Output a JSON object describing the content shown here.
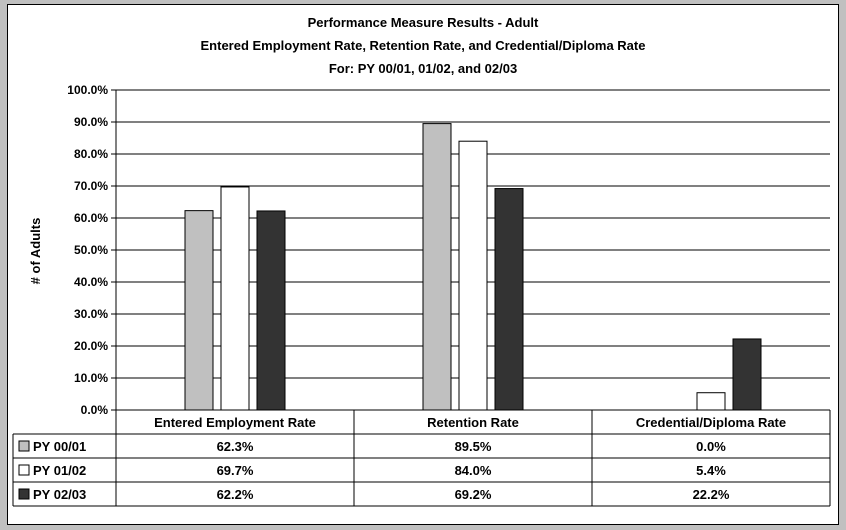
{
  "chart_data": {
    "type": "bar",
    "title": "Performance Measure Results - Adult",
    "subtitle": "Entered Employment Rate, Retention Rate, and Credential/Diploma Rate",
    "subtitle2": "For: PY 00/01, 01/02, and 02/03",
    "ylabel": "# of Adults",
    "xlabel": "",
    "ylim": [
      0,
      100
    ],
    "yticks": [
      "0.0%",
      "10.0%",
      "20.0%",
      "30.0%",
      "40.0%",
      "50.0%",
      "60.0%",
      "70.0%",
      "80.0%",
      "90.0%",
      "100.0%"
    ],
    "categories": [
      "Entered Employment Rate",
      "Retention Rate",
      "Credential/Diploma Rate"
    ],
    "series": [
      {
        "name": "PY 00/01",
        "color": "#c0c0c0",
        "values": [
          62.3,
          89.5,
          0.0
        ],
        "labels": [
          "62.3%",
          "89.5%",
          "0.0%"
        ]
      },
      {
        "name": "PY 01/02",
        "color": "#ffffff",
        "values": [
          69.7,
          84.0,
          5.4
        ],
        "labels": [
          "69.7%",
          "84.0%",
          "5.4%"
        ]
      },
      {
        "name": "PY 02/03",
        "color": "#333333",
        "values": [
          62.2,
          69.2,
          22.2
        ],
        "labels": [
          "62.2%",
          "69.2%",
          "22.2%"
        ]
      }
    ],
    "grid": true,
    "legend": "data table"
  }
}
